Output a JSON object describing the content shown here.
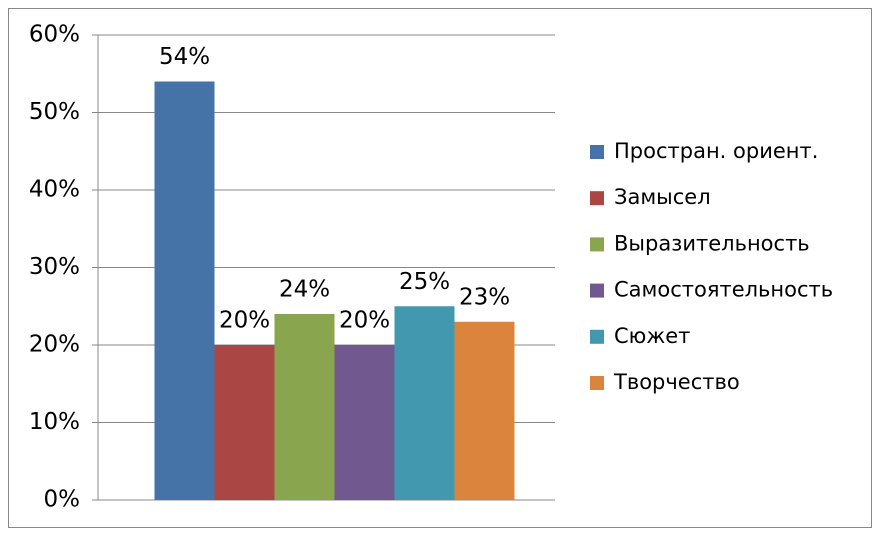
{
  "chart_data": {
    "type": "bar",
    "categories": [
      null
    ],
    "series": [
      {
        "name": "Простран. ориент.",
        "color": "#4572a7",
        "values": [
          54
        ],
        "value_labels": [
          "54%"
        ]
      },
      {
        "name": "Замысел",
        "color": "#aa4643",
        "values": [
          20
        ],
        "value_labels": [
          "20%"
        ]
      },
      {
        "name": "Выразительность",
        "color": "#89a54e",
        "values": [
          24
        ],
        "value_labels": [
          "24%"
        ]
      },
      {
        "name": "Самостоятельность",
        "color": "#71588f",
        "values": [
          20
        ],
        "value_labels": [
          "20%"
        ]
      },
      {
        "name": "Сюжет",
        "color": "#4198af",
        "values": [
          25
        ],
        "value_labels": [
          "25%"
        ]
      },
      {
        "name": "Творчество",
        "color": "#db843d",
        "values": [
          23
        ],
        "value_labels": [
          "23%"
        ]
      }
    ],
    "ylim": [
      0,
      60
    ],
    "yticks": [
      {
        "value": 0,
        "label": "0%"
      },
      {
        "value": 10,
        "label": "10%"
      },
      {
        "value": 20,
        "label": "20%"
      },
      {
        "value": 30,
        "label": "30%"
      },
      {
        "value": 40,
        "label": "40%"
      },
      {
        "value": 50,
        "label": "50%"
      },
      {
        "value": 60,
        "label": "60%"
      }
    ],
    "grid": true,
    "legend": "right"
  }
}
